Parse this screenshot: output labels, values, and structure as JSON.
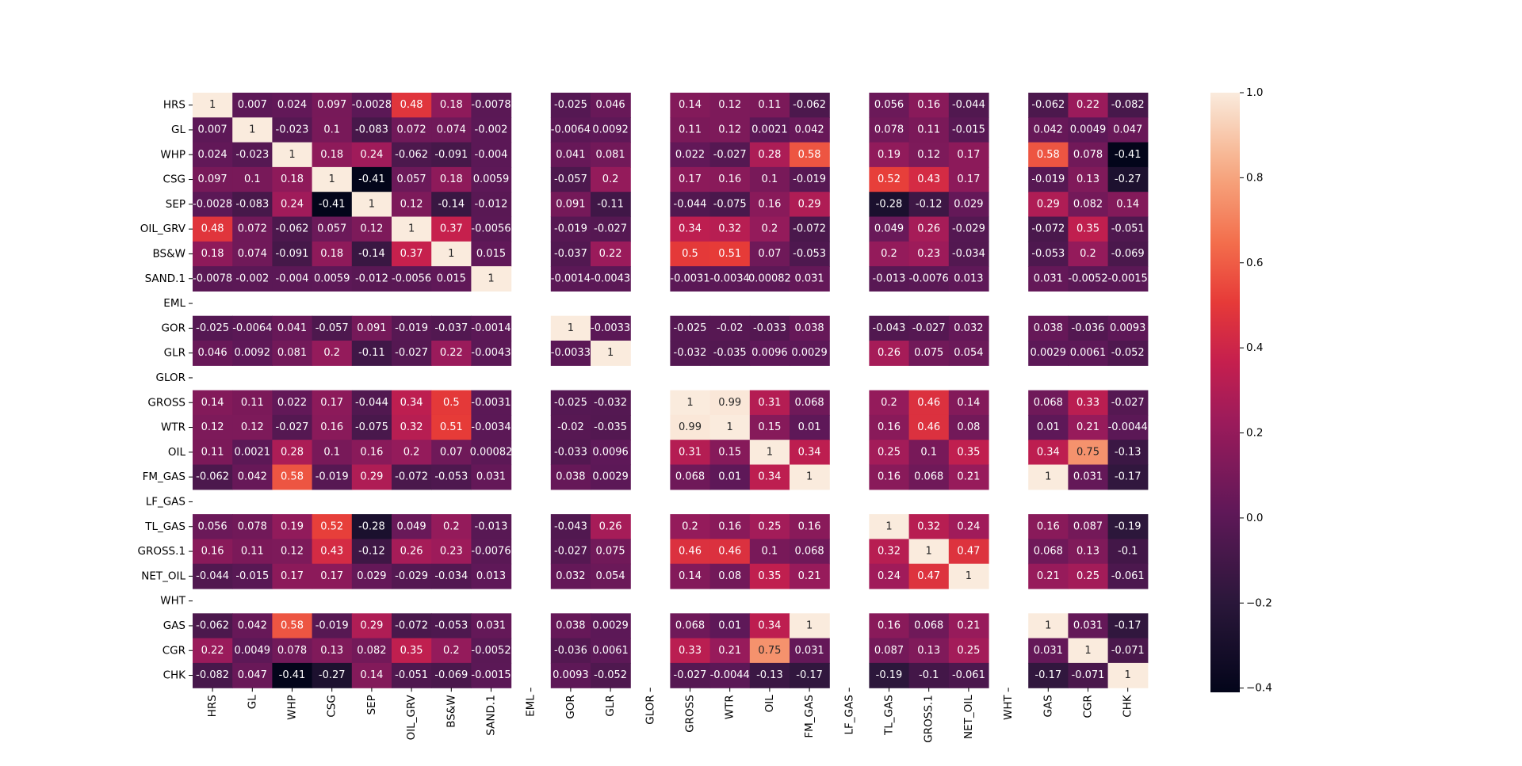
{
  "chart_data": {
    "type": "heatmap",
    "title": "",
    "xlabel": "",
    "ylabel": "",
    "labels": [
      "HRS",
      "GL",
      "WHP",
      "CSG",
      "SEP",
      "OIL_GRV",
      "BS&W",
      "SAND.1",
      "EML",
      "GOR",
      "GLR",
      "GLOR",
      "GROSS",
      "WTR",
      "OIL",
      "FM_GAS",
      "LF_GAS",
      "TL_GAS",
      "GROSS.1",
      "NET_OIL",
      "WHT",
      "GAS",
      "CGR",
      "CHK"
    ],
    "matrix": [
      [
        "1",
        "0.007",
        "0.024",
        "0.097",
        "-0.0028",
        "0.48",
        "0.18",
        "-0.0078",
        null,
        "-0.025",
        "0.046",
        null,
        "0.14",
        "0.12",
        "0.11",
        "-0.062",
        null,
        "0.056",
        "0.16",
        "-0.044",
        null,
        "-0.062",
        "0.22",
        "-0.082"
      ],
      [
        "0.007",
        "1",
        "-0.023",
        "0.1",
        "-0.083",
        "0.072",
        "0.074",
        "-0.002",
        null,
        "-0.0064",
        "0.0092",
        null,
        "0.11",
        "0.12",
        "0.0021",
        "0.042",
        null,
        "0.078",
        "0.11",
        "-0.015",
        null,
        "0.042",
        "0.0049",
        "0.047"
      ],
      [
        "0.024",
        "-0.023",
        "1",
        "0.18",
        "0.24",
        "-0.062",
        "-0.091",
        "-0.004",
        null,
        "0.041",
        "0.081",
        null,
        "0.022",
        "-0.027",
        "0.28",
        "0.58",
        null,
        "0.19",
        "0.12",
        "0.17",
        null,
        "0.58",
        "0.078",
        "-0.41"
      ],
      [
        "0.097",
        "0.1",
        "0.18",
        "1",
        "-0.41",
        "0.057",
        "0.18",
        "0.0059",
        null,
        "-0.057",
        "0.2",
        null,
        "0.17",
        "0.16",
        "0.1",
        "-0.019",
        null,
        "0.52",
        "0.43",
        "0.17",
        null,
        "-0.019",
        "0.13",
        "-0.27"
      ],
      [
        "-0.0028",
        "-0.083",
        "0.24",
        "-0.41",
        "1",
        "0.12",
        "-0.14",
        "-0.012",
        null,
        "0.091",
        "-0.11",
        null,
        "-0.044",
        "-0.075",
        "0.16",
        "0.29",
        null,
        "-0.28",
        "-0.12",
        "0.029",
        null,
        "0.29",
        "0.082",
        "0.14"
      ],
      [
        "0.48",
        "0.072",
        "-0.062",
        "0.057",
        "0.12",
        "1",
        "0.37",
        "-0.0056",
        null,
        "-0.019",
        "-0.027",
        null,
        "0.34",
        "0.32",
        "0.2",
        "-0.072",
        null,
        "0.049",
        "0.26",
        "-0.029",
        null,
        "-0.072",
        "0.35",
        "-0.051"
      ],
      [
        "0.18",
        "0.074",
        "-0.091",
        "0.18",
        "-0.14",
        "0.37",
        "1",
        "0.015",
        null,
        "-0.037",
        "0.22",
        null,
        "0.5",
        "0.51",
        "0.07",
        "-0.053",
        null,
        "0.2",
        "0.23",
        "-0.034",
        null,
        "-0.053",
        "0.2",
        "-0.069"
      ],
      [
        "-0.0078",
        "-0.002",
        "-0.004",
        "0.0059",
        "-0.012",
        "-0.0056",
        "0.015",
        "1",
        null,
        "-0.0014",
        "-0.0043",
        null,
        "-0.0031",
        "-0.0034",
        "0.00082",
        "0.031",
        null,
        "-0.013",
        "-0.0076",
        "0.013",
        null,
        "0.031",
        "-0.0052",
        "-0.0015"
      ],
      [
        null,
        null,
        null,
        null,
        null,
        null,
        null,
        null,
        null,
        null,
        null,
        null,
        null,
        null,
        null,
        null,
        null,
        null,
        null,
        null,
        null,
        null,
        null,
        null
      ],
      [
        "-0.025",
        "-0.0064",
        "0.041",
        "-0.057",
        "0.091",
        "-0.019",
        "-0.037",
        "-0.0014",
        null,
        "1",
        "-0.0033",
        null,
        "-0.025",
        "-0.02",
        "-0.033",
        "0.038",
        null,
        "-0.043",
        "-0.027",
        "0.032",
        null,
        "0.038",
        "-0.036",
        "0.0093"
      ],
      [
        "0.046",
        "0.0092",
        "0.081",
        "0.2",
        "-0.11",
        "-0.027",
        "0.22",
        "-0.0043",
        null,
        "-0.0033",
        "1",
        null,
        "-0.032",
        "-0.035",
        "0.0096",
        "0.0029",
        null,
        "0.26",
        "0.075",
        "0.054",
        null,
        "0.0029",
        "0.0061",
        "-0.052"
      ],
      [
        null,
        null,
        null,
        null,
        null,
        null,
        null,
        null,
        null,
        null,
        null,
        null,
        null,
        null,
        null,
        null,
        null,
        null,
        null,
        null,
        null,
        null,
        null,
        null
      ],
      [
        "0.14",
        "0.11",
        "0.022",
        "0.17",
        "-0.044",
        "0.34",
        "0.5",
        "-0.0031",
        null,
        "-0.025",
        "-0.032",
        null,
        "1",
        "0.99",
        "0.31",
        "0.068",
        null,
        "0.2",
        "0.46",
        "0.14",
        null,
        "0.068",
        "0.33",
        "-0.027"
      ],
      [
        "0.12",
        "0.12",
        "-0.027",
        "0.16",
        "-0.075",
        "0.32",
        "0.51",
        "-0.0034",
        null,
        "-0.02",
        "-0.035",
        null,
        "0.99",
        "1",
        "0.15",
        "0.01",
        null,
        "0.16",
        "0.46",
        "0.08",
        null,
        "0.01",
        "0.21",
        "-0.0044"
      ],
      [
        "0.11",
        "0.0021",
        "0.28",
        "0.1",
        "0.16",
        "0.2",
        "0.07",
        "0.00082",
        null,
        "-0.033",
        "0.0096",
        null,
        "0.31",
        "0.15",
        "1",
        "0.34",
        null,
        "0.25",
        "0.1",
        "0.35",
        null,
        "0.34",
        "0.75",
        "-0.13"
      ],
      [
        "-0.062",
        "0.042",
        "0.58",
        "-0.019",
        "0.29",
        "-0.072",
        "-0.053",
        "0.031",
        null,
        "0.038",
        "0.0029",
        null,
        "0.068",
        "0.01",
        "0.34",
        "1",
        null,
        "0.16",
        "0.068",
        "0.21",
        null,
        "1",
        "0.031",
        "-0.17"
      ],
      [
        null,
        null,
        null,
        null,
        null,
        null,
        null,
        null,
        null,
        null,
        null,
        null,
        null,
        null,
        null,
        null,
        null,
        null,
        null,
        null,
        null,
        null,
        null,
        null
      ],
      [
        "0.056",
        "0.078",
        "0.19",
        "0.52",
        "-0.28",
        "0.049",
        "0.2",
        "-0.013",
        null,
        "-0.043",
        "0.26",
        null,
        "0.2",
        "0.16",
        "0.25",
        "0.16",
        null,
        "1",
        "0.32",
        "0.24",
        null,
        "0.16",
        "0.087",
        "-0.19"
      ],
      [
        "0.16",
        "0.11",
        "0.12",
        "0.43",
        "-0.12",
        "0.26",
        "0.23",
        "-0.0076",
        null,
        "-0.027",
        "0.075",
        null,
        "0.46",
        "0.46",
        "0.1",
        "0.068",
        null,
        "0.32",
        "1",
        "0.47",
        null,
        "0.068",
        "0.13",
        "-0.1"
      ],
      [
        "-0.044",
        "-0.015",
        "0.17",
        "0.17",
        "0.029",
        "-0.029",
        "-0.034",
        "0.013",
        null,
        "0.032",
        "0.054",
        null,
        "0.14",
        "0.08",
        "0.35",
        "0.21",
        null,
        "0.24",
        "0.47",
        "1",
        null,
        "0.21",
        "0.25",
        "-0.061"
      ],
      [
        null,
        null,
        null,
        null,
        null,
        null,
        null,
        null,
        null,
        null,
        null,
        null,
        null,
        null,
        null,
        null,
        null,
        null,
        null,
        null,
        null,
        null,
        null,
        null
      ],
      [
        "-0.062",
        "0.042",
        "0.58",
        "-0.019",
        "0.29",
        "-0.072",
        "-0.053",
        "0.031",
        null,
        "0.038",
        "0.0029",
        null,
        "0.068",
        "0.01",
        "0.34",
        "1",
        null,
        "0.16",
        "0.068",
        "0.21",
        null,
        "1",
        "0.031",
        "-0.17"
      ],
      [
        "0.22",
        "0.0049",
        "0.078",
        "0.13",
        "0.082",
        "0.35",
        "0.2",
        "-0.0052",
        null,
        "-0.036",
        "0.0061",
        null,
        "0.33",
        "0.21",
        "0.75",
        "0.031",
        null,
        "0.087",
        "0.13",
        "0.25",
        null,
        "0.031",
        "1",
        "-0.071"
      ],
      [
        "-0.082",
        "0.047",
        "-0.41",
        "-0.27",
        "0.14",
        "-0.051",
        "-0.069",
        "-0.0015",
        null,
        "0.0093",
        "-0.052",
        null,
        "-0.027",
        "-0.0044",
        "-0.13",
        "-0.17",
        null,
        "-0.19",
        "-0.1",
        "-0.061",
        null,
        "-0.17",
        "-0.071",
        "1"
      ]
    ],
    "colorbar": {
      "min": -0.41,
      "max": 1.0,
      "ticks": [
        "1.0",
        "0.8",
        "0.6",
        "0.4",
        "0.2",
        "0.0",
        "−0.2",
        "−0.4"
      ],
      "tick_values": [
        1.0,
        0.8,
        0.6,
        0.4,
        0.2,
        0.0,
        -0.2,
        -0.4
      ],
      "colormap": "rocket"
    },
    "grid": false,
    "legend": "colorbar-right"
  }
}
